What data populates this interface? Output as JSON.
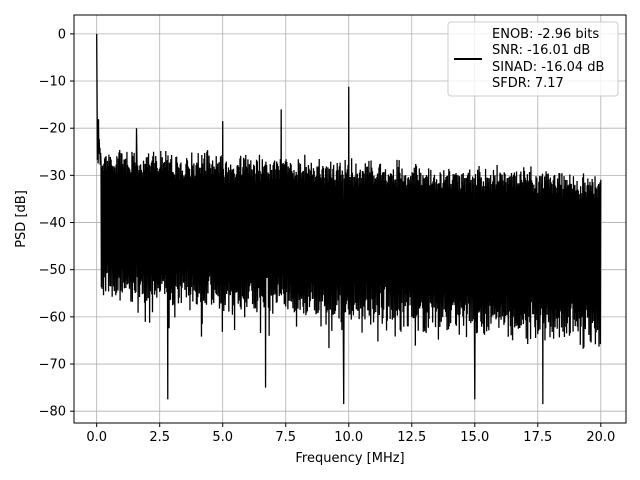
{
  "chart_data": {
    "type": "line",
    "title": "",
    "xlabel": "Frequency [MHz]",
    "ylabel": "PSD [dB]",
    "xlim": [
      -0.9,
      21.0
    ],
    "ylim": [
      -82.5,
      4.0
    ],
    "grid": true,
    "x_ticks": [
      0.0,
      2.5,
      5.0,
      7.5,
      10.0,
      12.5,
      15.0,
      17.5,
      20.0
    ],
    "x_tick_labels": [
      "0.0",
      "2.5",
      "5.0",
      "7.5",
      "10.0",
      "12.5",
      "15.0",
      "17.5",
      "20.0"
    ],
    "y_ticks": [
      0,
      -10,
      -20,
      -30,
      -40,
      -50,
      -60,
      -70,
      -80
    ],
    "y_tick_labels": [
      "0",
      "−10",
      "−20",
      "−30",
      "−40",
      "−50",
      "−60",
      "−70",
      "−80"
    ],
    "series": [
      {
        "color": "#000000",
        "x_range": [
          0.0,
          20.0
        ],
        "noise_floor_top_start": -23.5,
        "noise_floor_top_end": -28.5,
        "noise_floor_bottom_start": -53.0,
        "noise_floor_bottom_end": -62.0,
        "peaks": [
          {
            "x": 0.0,
            "y": 0.0
          },
          {
            "x": 0.02,
            "y": -13.0
          },
          {
            "x": 1.58,
            "y": -20.0
          },
          {
            "x": 5.0,
            "y": -18.5
          },
          {
            "x": 7.32,
            "y": -16.0
          },
          {
            "x": 10.0,
            "y": -11.2
          }
        ],
        "dips": [
          {
            "x": 2.82,
            "y": -77.5
          },
          {
            "x": 6.7,
            "y": -75.0
          },
          {
            "x": 9.8,
            "y": -78.5
          },
          {
            "x": 15.0,
            "y": -77.5
          },
          {
            "x": 17.7,
            "y": -78.5
          }
        ]
      }
    ],
    "legend": {
      "placement": "top-right",
      "entries": [
        "ENOB: -2.96 bits",
        "SNR: -16.01 dB",
        "SINAD: -16.04 dB",
        "SFDR: 7.17"
      ]
    }
  }
}
